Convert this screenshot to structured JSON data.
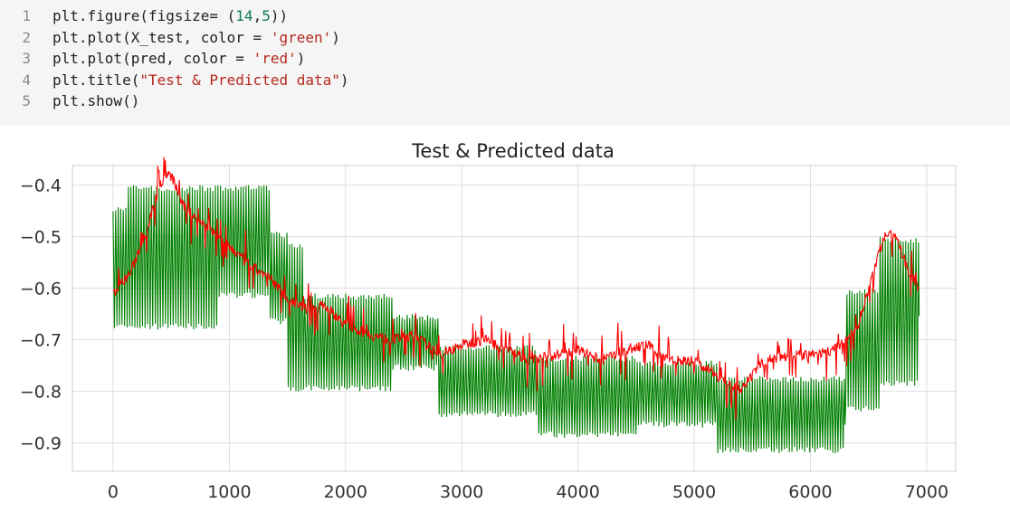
{
  "code_cell": {
    "lines": [
      {
        "n": "1",
        "tokens": [
          {
            "t": "plt.figure(figsize= (",
            "c": "plain"
          },
          {
            "t": "14",
            "c": "num"
          },
          {
            "t": ",",
            "c": "plain"
          },
          {
            "t": "5",
            "c": "num"
          },
          {
            "t": "))",
            "c": "plain"
          }
        ]
      },
      {
        "n": "2",
        "tokens": [
          {
            "t": "plt.plot(X_test, color = ",
            "c": "plain"
          },
          {
            "t": "'green'",
            "c": "str"
          },
          {
            "t": ")",
            "c": "plain"
          }
        ]
      },
      {
        "n": "3",
        "tokens": [
          {
            "t": "plt.plot(pred, color = ",
            "c": "plain"
          },
          {
            "t": "'red'",
            "c": "str"
          },
          {
            "t": ")",
            "c": "plain"
          }
        ]
      },
      {
        "n": "4",
        "tokens": [
          {
            "t": "plt.title(",
            "c": "plain"
          },
          {
            "t": "\"Test & Predicted data\"",
            "c": "str"
          },
          {
            "t": ")",
            "c": "plain"
          }
        ]
      },
      {
        "n": "5",
        "tokens": [
          {
            "t": "plt.show()",
            "c": "plain"
          }
        ]
      }
    ]
  },
  "chart_data": {
    "type": "line",
    "title": "Test & Predicted data",
    "xlabel": "",
    "ylabel": "",
    "xlim": [
      -350,
      7250
    ],
    "ylim": [
      -0.955,
      -0.362
    ],
    "x_ticks": [
      0,
      1000,
      2000,
      3000,
      4000,
      5000,
      6000,
      7000
    ],
    "y_ticks": [
      -0.4,
      -0.5,
      -0.6,
      -0.7,
      -0.8,
      -0.9
    ],
    "grid": true,
    "colors": {
      "test": "#008000",
      "pred": "#ff0000",
      "grid": "#dddddd"
    },
    "series": [
      {
        "key": "test",
        "n_points": 6930,
        "band_segments": [
          {
            "x0": 0,
            "x1": 120,
            "low": -0.68,
            "high": -0.44
          },
          {
            "x0": 120,
            "x1": 900,
            "low": -0.68,
            "high": -0.4
          },
          {
            "x0": 900,
            "x1": 1350,
            "low": -0.62,
            "high": -0.4
          },
          {
            "x0": 1350,
            "x1": 1500,
            "low": -0.67,
            "high": -0.49
          },
          {
            "x0": 1500,
            "x1": 1650,
            "low": -0.8,
            "high": -0.51
          },
          {
            "x0": 1650,
            "x1": 2400,
            "low": -0.8,
            "high": -0.61
          },
          {
            "x0": 2400,
            "x1": 2800,
            "low": -0.76,
            "high": -0.65
          },
          {
            "x0": 2800,
            "x1": 3650,
            "low": -0.85,
            "high": -0.71
          },
          {
            "x0": 3650,
            "x1": 4500,
            "low": -0.89,
            "high": -0.73
          },
          {
            "x0": 4500,
            "x1": 5200,
            "low": -0.87,
            "high": -0.74
          },
          {
            "x0": 5200,
            "x1": 6300,
            "low": -0.92,
            "high": -0.77
          },
          {
            "x0": 6300,
            "x1": 6600,
            "low": -0.84,
            "high": -0.6
          },
          {
            "x0": 6600,
            "x1": 6930,
            "low": -0.79,
            "high": -0.5
          }
        ]
      },
      {
        "key": "pred",
        "n_points": 6930,
        "x": [
          0,
          150,
          300,
          400,
          480,
          520,
          600,
          750,
          900,
          1050,
          1200,
          1350,
          1500,
          1650,
          1800,
          2000,
          2200,
          2400,
          2600,
          2800,
          3000,
          3200,
          3400,
          3600,
          3800,
          4000,
          4200,
          4400,
          4600,
          4800,
          5000,
          5200,
          5400,
          5600,
          5800,
          6000,
          6200,
          6400,
          6550,
          6650,
          6750,
          6850,
          6930
        ],
        "y": [
          -0.61,
          -0.57,
          -0.48,
          -0.4,
          -0.38,
          -0.39,
          -0.44,
          -0.47,
          -0.5,
          -0.53,
          -0.56,
          -0.58,
          -0.62,
          -0.64,
          -0.63,
          -0.67,
          -0.69,
          -0.7,
          -0.69,
          -0.73,
          -0.71,
          -0.7,
          -0.72,
          -0.74,
          -0.73,
          -0.72,
          -0.74,
          -0.72,
          -0.71,
          -0.74,
          -0.74,
          -0.77,
          -0.8,
          -0.74,
          -0.73,
          -0.73,
          -0.72,
          -0.68,
          -0.56,
          -0.49,
          -0.51,
          -0.57,
          -0.6
        ]
      }
    ]
  }
}
